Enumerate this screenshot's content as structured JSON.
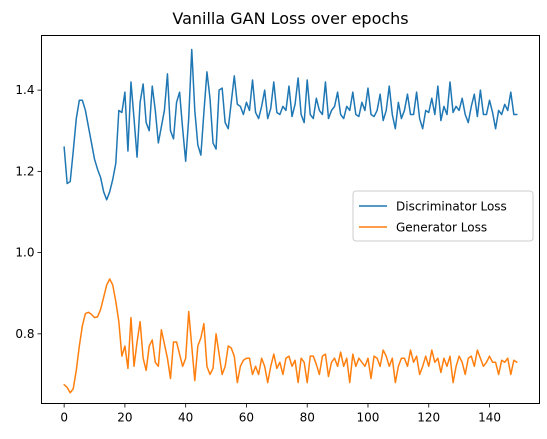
{
  "chart_data": {
    "type": "line",
    "title": "Vanilla GAN Loss over epochs",
    "xlabel": "",
    "ylabel": "",
    "xlim": [
      -7.45,
      156.45
    ],
    "ylim": [
      0.6285,
      1.5345
    ],
    "xticks": [
      0,
      20,
      40,
      60,
      80,
      100,
      120,
      140
    ],
    "yticks": [
      0.8,
      1.0,
      1.2,
      1.4
    ],
    "xtick_labels": [
      "0",
      "20",
      "40",
      "60",
      "80",
      "100",
      "120",
      "140"
    ],
    "ytick_labels": [
      "0.8",
      "1.0",
      "1.2",
      "1.4"
    ],
    "grid": false,
    "legend_position": "center-right",
    "x": [
      0,
      1,
      2,
      3,
      4,
      5,
      6,
      7,
      8,
      9,
      10,
      11,
      12,
      13,
      14,
      15,
      16,
      17,
      18,
      19,
      20,
      21,
      22,
      23,
      24,
      25,
      26,
      27,
      28,
      29,
      30,
      31,
      32,
      33,
      34,
      35,
      36,
      37,
      38,
      39,
      40,
      41,
      42,
      43,
      44,
      45,
      46,
      47,
      48,
      49,
      50,
      51,
      52,
      53,
      54,
      55,
      56,
      57,
      58,
      59,
      60,
      61,
      62,
      63,
      64,
      65,
      66,
      67,
      68,
      69,
      70,
      71,
      72,
      73,
      74,
      75,
      76,
      77,
      78,
      79,
      80,
      81,
      82,
      83,
      84,
      85,
      86,
      87,
      88,
      89,
      90,
      91,
      92,
      93,
      94,
      95,
      96,
      97,
      98,
      99,
      100,
      101,
      102,
      103,
      104,
      105,
      106,
      107,
      108,
      109,
      110,
      111,
      112,
      113,
      114,
      115,
      116,
      117,
      118,
      119,
      120,
      121,
      122,
      123,
      124,
      125,
      126,
      127,
      128,
      129,
      130,
      131,
      132,
      133,
      134,
      135,
      136,
      137,
      138,
      139,
      140,
      141,
      142,
      143,
      144,
      145,
      146,
      147,
      148,
      149
    ],
    "series": [
      {
        "name": "Discriminator Loss",
        "color": "#1f77b4",
        "values": [
          1.26,
          1.17,
          1.175,
          1.25,
          1.33,
          1.375,
          1.375,
          1.35,
          1.31,
          1.27,
          1.23,
          1.205,
          1.185,
          1.15,
          1.13,
          1.15,
          1.18,
          1.22,
          1.35,
          1.345,
          1.395,
          1.25,
          1.42,
          1.33,
          1.235,
          1.37,
          1.415,
          1.32,
          1.3,
          1.41,
          1.35,
          1.27,
          1.31,
          1.35,
          1.44,
          1.3,
          1.28,
          1.37,
          1.395,
          1.305,
          1.225,
          1.33,
          1.5,
          1.35,
          1.265,
          1.24,
          1.345,
          1.445,
          1.38,
          1.27,
          1.255,
          1.4,
          1.405,
          1.32,
          1.305,
          1.37,
          1.435,
          1.365,
          1.36,
          1.34,
          1.37,
          1.35,
          1.425,
          1.345,
          1.33,
          1.36,
          1.4,
          1.33,
          1.355,
          1.42,
          1.345,
          1.34,
          1.36,
          1.35,
          1.41,
          1.335,
          1.365,
          1.43,
          1.34,
          1.32,
          1.425,
          1.34,
          1.33,
          1.38,
          1.35,
          1.34,
          1.42,
          1.33,
          1.35,
          1.36,
          1.395,
          1.34,
          1.33,
          1.36,
          1.35,
          1.395,
          1.34,
          1.335,
          1.37,
          1.35,
          1.405,
          1.34,
          1.335,
          1.35,
          1.39,
          1.325,
          1.35,
          1.41,
          1.34,
          1.305,
          1.37,
          1.33,
          1.35,
          1.39,
          1.34,
          1.34,
          1.395,
          1.33,
          1.305,
          1.35,
          1.345,
          1.38,
          1.34,
          1.41,
          1.325,
          1.36,
          1.34,
          1.42,
          1.345,
          1.36,
          1.35,
          1.38,
          1.34,
          1.32,
          1.36,
          1.39,
          1.335,
          1.4,
          1.34,
          1.34,
          1.375,
          1.345,
          1.305,
          1.35,
          1.34,
          1.365,
          1.35,
          1.395,
          1.34,
          1.34
        ]
      },
      {
        "name": "Generator Loss",
        "color": "#ff7f0e",
        "values": [
          0.675,
          0.668,
          0.655,
          0.665,
          0.71,
          0.77,
          0.82,
          0.85,
          0.853,
          0.848,
          0.84,
          0.842,
          0.86,
          0.89,
          0.92,
          0.935,
          0.92,
          0.88,
          0.83,
          0.745,
          0.77,
          0.715,
          0.84,
          0.72,
          0.78,
          0.83,
          0.74,
          0.71,
          0.77,
          0.785,
          0.73,
          0.72,
          0.81,
          0.775,
          0.74,
          0.69,
          0.78,
          0.78,
          0.75,
          0.72,
          0.74,
          0.855,
          0.77,
          0.685,
          0.77,
          0.79,
          0.825,
          0.72,
          0.7,
          0.715,
          0.8,
          0.75,
          0.7,
          0.72,
          0.77,
          0.765,
          0.745,
          0.68,
          0.72,
          0.735,
          0.74,
          0.74,
          0.7,
          0.72,
          0.7,
          0.74,
          0.72,
          0.68,
          0.72,
          0.75,
          0.715,
          0.73,
          0.7,
          0.74,
          0.745,
          0.72,
          0.735,
          0.68,
          0.74,
          0.73,
          0.68,
          0.745,
          0.745,
          0.725,
          0.7,
          0.745,
          0.75,
          0.695,
          0.73,
          0.74,
          0.72,
          0.755,
          0.72,
          0.74,
          0.68,
          0.75,
          0.72,
          0.74,
          0.73,
          0.72,
          0.74,
          0.69,
          0.745,
          0.74,
          0.72,
          0.76,
          0.745,
          0.72,
          0.74,
          0.68,
          0.72,
          0.74,
          0.74,
          0.72,
          0.76,
          0.73,
          0.745,
          0.7,
          0.72,
          0.745,
          0.72,
          0.76,
          0.73,
          0.74,
          0.705,
          0.74,
          0.72,
          0.745,
          0.68,
          0.72,
          0.745,
          0.73,
          0.7,
          0.74,
          0.745,
          0.72,
          0.76,
          0.74,
          0.72,
          0.73,
          0.745,
          0.73,
          0.73,
          0.7,
          0.735,
          0.73,
          0.74,
          0.7,
          0.735,
          0.73
        ]
      }
    ]
  }
}
